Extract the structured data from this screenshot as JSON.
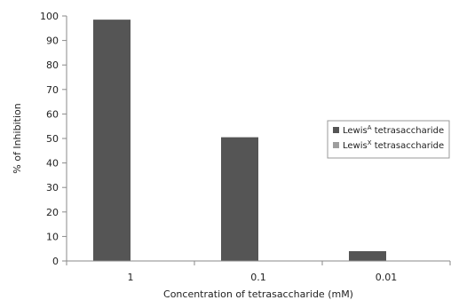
{
  "chart_data": {
    "type": "bar",
    "categories": [
      "1",
      "0.1",
      "0.01"
    ],
    "series": [
      {
        "name": "Lewis^A tetrasaccharide",
        "label_base": "Lewis",
        "label_sup": "A",
        "label_rest": " tetrasaccharide",
        "color": "#555555",
        "values": [
          98.5,
          50.5,
          4
        ]
      },
      {
        "name": "Lewis^X tetrasaccharide",
        "label_base": "Lewis",
        "label_sup": "X",
        "label_rest": " tetrasaccharide",
        "color": "#9e9e9e",
        "values": [
          0,
          0,
          0
        ]
      }
    ],
    "xlabel": "Concentration of tetrasaccharide (mM)",
    "ylabel": "% of Inhibition",
    "ylim": [
      0,
      100
    ],
    "yticks": [
      "0",
      "10",
      "20",
      "30",
      "40",
      "50",
      "60",
      "70",
      "80",
      "90",
      "100"
    ],
    "grid": false,
    "legend_position": "right"
  }
}
